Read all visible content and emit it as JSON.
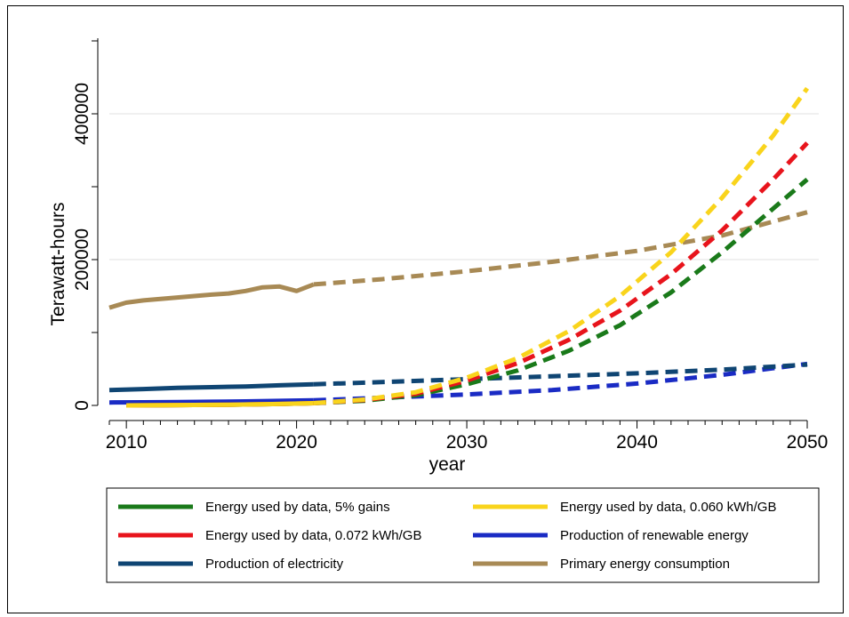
{
  "chart_data": {
    "type": "line",
    "title": "",
    "xlabel": "year",
    "ylabel": "Terawatt-hours",
    "xlim": [
      2009,
      2050
    ],
    "ylim": [
      0,
      500000
    ],
    "x_ticks": [
      2010,
      2020,
      2030,
      2040,
      2050
    ],
    "x_tick_labels": [
      "2010",
      "2020",
      "2030",
      "2040",
      "2050"
    ],
    "x_minor_step": 1,
    "y_ticks": [
      0,
      200000,
      400000
    ],
    "y_tick_labels": [
      "0",
      "200000",
      "400000"
    ],
    "y_minor_ticks": [
      100000,
      300000,
      500000
    ],
    "grid": "horizontal",
    "legend_position": "bottom",
    "legend_columns": 2,
    "series": [
      {
        "name": "Energy used by data, 5% gains",
        "color": "#1a7a1a",
        "historical": {
          "x": [
            2010,
            2013,
            2016,
            2019,
            2021
          ],
          "y": [
            0,
            500,
            1000,
            2000,
            3000
          ]
        },
        "projected": {
          "x": [
            2021,
            2024,
            2027,
            2030,
            2033,
            2036,
            2039,
            2042,
            2045,
            2048,
            2050
          ],
          "y": [
            3000,
            6500,
            14000,
            29000,
            48000,
            75000,
            110000,
            155000,
            210000,
            270000,
            310000
          ]
        }
      },
      {
        "name": "Energy used by data, 0.060 kWh/GB",
        "color": "#f9d41c",
        "historical": {
          "x": [
            2010,
            2013,
            2016,
            2019,
            2021
          ],
          "y": [
            0,
            500,
            1000,
            2000,
            3000
          ]
        },
        "projected": {
          "x": [
            2021,
            2024,
            2027,
            2030,
            2033,
            2036,
            2039,
            2042,
            2045,
            2048,
            2050
          ],
          "y": [
            3000,
            8000,
            18000,
            38000,
            65000,
            102000,
            150000,
            210000,
            285000,
            370000,
            435000
          ]
        }
      },
      {
        "name": "Energy used by data, 0.072 kWh/GB",
        "color": "#e8141c",
        "historical": {
          "x": [
            2010,
            2013,
            2016,
            2019,
            2021
          ],
          "y": [
            0,
            500,
            1000,
            2000,
            3000
          ]
        },
        "projected": {
          "x": [
            2021,
            2024,
            2027,
            2030,
            2033,
            2036,
            2039,
            2042,
            2045,
            2048,
            2050
          ],
          "y": [
            3000,
            7500,
            16000,
            34000,
            58000,
            90000,
            130000,
            180000,
            240000,
            310000,
            360000
          ]
        }
      },
      {
        "name": "Production of renewable energy",
        "color": "#1a2bc4",
        "historical": {
          "x": [
            2009,
            2011,
            2013,
            2015,
            2017,
            2019,
            2021
          ],
          "y": [
            4000,
            4300,
            4600,
            5000,
            5500,
            6200,
            7000
          ]
        },
        "projected": {
          "x": [
            2021,
            2025,
            2030,
            2035,
            2040,
            2045,
            2048,
            2050
          ],
          "y": [
            7000,
            10500,
            15000,
            21000,
            30000,
            42000,
            51000,
            57000
          ]
        }
      },
      {
        "name": "Production of electricity",
        "color": "#0f4573",
        "historical": {
          "x": [
            2009,
            2011,
            2013,
            2015,
            2017,
            2019,
            2021
          ],
          "y": [
            21000,
            22500,
            24000,
            25000,
            26000,
            27500,
            29000
          ]
        },
        "projected": {
          "x": [
            2021,
            2025,
            2030,
            2035,
            2040,
            2045,
            2050
          ],
          "y": [
            29000,
            32000,
            36000,
            40000,
            44000,
            49000,
            56000
          ]
        }
      },
      {
        "name": "Primary energy consumption",
        "color": "#a88a55",
        "historical": {
          "x": [
            2009,
            2010,
            2011,
            2012,
            2013,
            2014,
            2015,
            2016,
            2017,
            2018,
            2019,
            2020,
            2021
          ],
          "y": [
            134000,
            141000,
            144000,
            146000,
            148000,
            150000,
            152000,
            153500,
            157000,
            162000,
            163000,
            157000,
            166000
          ]
        },
        "projected": {
          "x": [
            2021,
            2025,
            2030,
            2035,
            2040,
            2045,
            2050
          ],
          "y": [
            166000,
            173000,
            184000,
            197000,
            212000,
            233000,
            265000
          ]
        }
      }
    ],
    "legend_order": [
      0,
      1,
      2,
      3,
      4,
      5
    ]
  }
}
